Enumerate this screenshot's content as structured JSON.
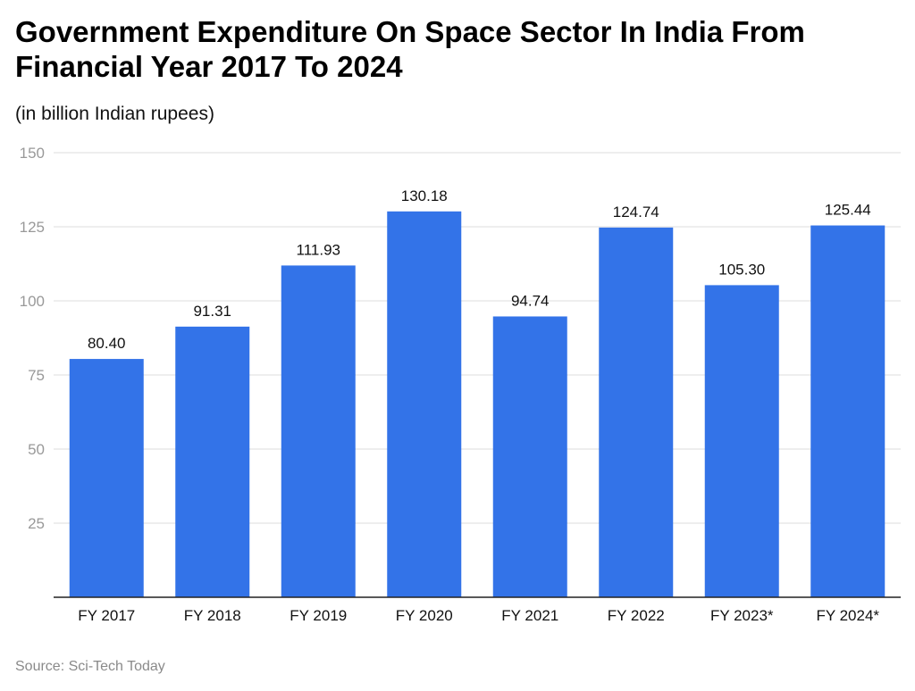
{
  "chart_data": {
    "type": "bar",
    "title": "Government Expenditure On Space Sector In India From Financial Year 2017 To 2024",
    "subtitle": "(in billion Indian rupees)",
    "source": "Source: Sci-Tech Today",
    "categories": [
      "FY 2017",
      "FY 2018",
      "FY 2019",
      "FY 2020",
      "FY 2021",
      "FY 2022",
      "FY 2023*",
      "FY 2024*"
    ],
    "values": [
      80.4,
      91.31,
      111.93,
      130.18,
      94.74,
      124.74,
      105.3,
      125.44
    ],
    "data_labels": [
      "80.40",
      "91.31",
      "111.93",
      "130.18",
      "94.74",
      "124.74",
      "105.30",
      "125.44"
    ],
    "yticks": [
      25,
      50,
      75,
      100,
      125,
      150
    ],
    "ylim": [
      0,
      150
    ],
    "grid": true,
    "bar_color": "#3373E8"
  }
}
